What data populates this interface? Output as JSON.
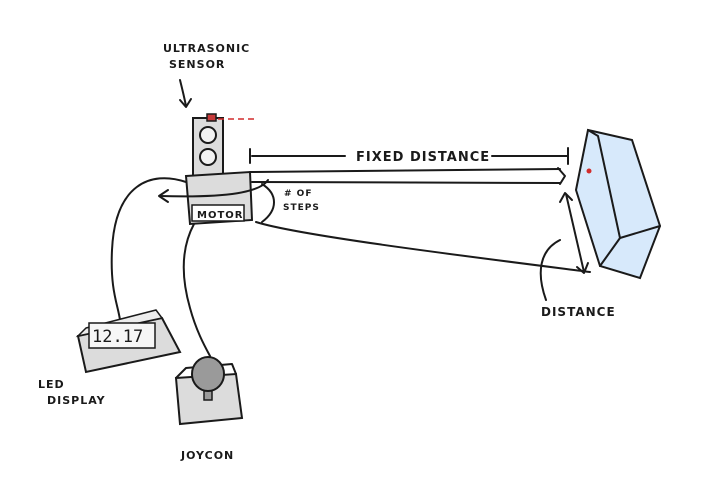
{
  "labels": {
    "ultrasonic_line1": "ULTRASONIC",
    "ultrasonic_line2": "SENSOR",
    "fixed_distance": "FIXED DISTANCE",
    "steps_line1": "# OF",
    "steps_line2": "STEPS",
    "motor": "MOTOR",
    "distance": "DISTANCE",
    "led_line1": "LED",
    "led_line2": "DISPLAY",
    "joycon": "JOYCON",
    "led_readout": "12.17"
  },
  "colors": {
    "ink": "#1a1a1a",
    "laser": "#d22b2b",
    "panel_fill": "#d7e9fb",
    "device_gray": "#dcdcdc",
    "knob_gray": "#9a9a9a"
  },
  "icons": {
    "sensor": "ultrasonic-sensor-icon",
    "motor": "motor-box-icon",
    "panel": "target-panel-icon",
    "display": "led-display-icon",
    "joystick": "joystick-icon"
  }
}
